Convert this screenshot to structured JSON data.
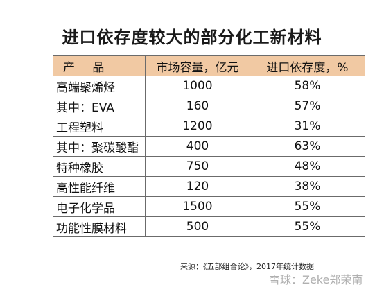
{
  "title": "进口依存度较大的部分化工新材料",
  "table": {
    "headers": [
      "产 品",
      "市场容量，亿元",
      "进口依存度，%"
    ],
    "rows": [
      [
        "高端聚烯烃",
        "1000",
        "58%"
      ],
      [
        "其中：EVA",
        "160",
        "57%"
      ],
      [
        "工程塑料",
        "1200",
        "31%"
      ],
      [
        "其中：聚碳酸酯",
        "400",
        "63%"
      ],
      [
        "特种橡胶",
        "750",
        "48%"
      ],
      [
        "高性能纤维",
        "120",
        "38%"
      ],
      [
        "电子化学品",
        "1500",
        "55%"
      ],
      [
        "功能性膜材料",
        "500",
        "55%"
      ]
    ]
  },
  "source": "来源：《五部组合论》，2017年统计数据",
  "watermark": "雪球：Zeke郑荣南",
  "colors": {
    "header_bg": "#f1c9a3",
    "border": "#6b6b6b"
  }
}
